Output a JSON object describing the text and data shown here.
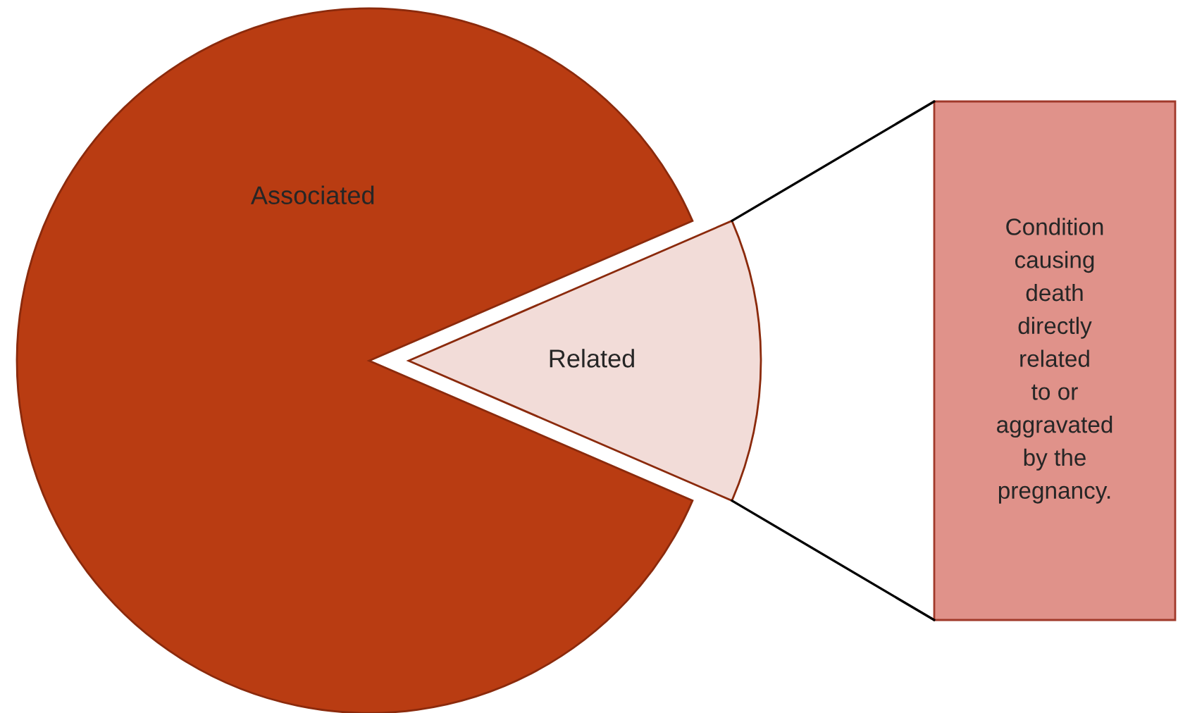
{
  "chart_data": {
    "type": "pie",
    "categories": [
      "Associated",
      "Related"
    ],
    "values": [
      87,
      13
    ],
    "colors": [
      "#b93c12",
      "#f2dcd8"
    ],
    "annotations": [
      "Condition\ncausing\ndeath\ndirectly\nrelated\nto or\naggravated\nby the\npregnancy."
    ]
  }
}
